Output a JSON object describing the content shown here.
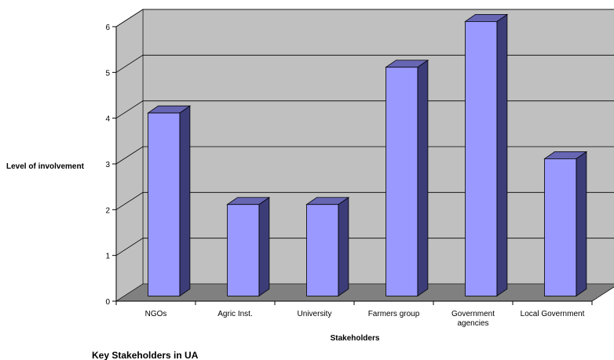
{
  "chart_data": {
    "type": "bar",
    "title": "Key Stakeholders  in UA",
    "xlabel": "Stakeholders",
    "ylabel": "Level of involvement",
    "categories": [
      [
        "NGOs"
      ],
      [
        "Agric Inst."
      ],
      [
        "University"
      ],
      [
        "Farmers group"
      ],
      [
        "Government",
        "agencies"
      ],
      [
        "Local Government"
      ]
    ],
    "values": [
      4,
      2,
      2,
      5,
      6,
      3
    ],
    "ylim": [
      0,
      6
    ],
    "yticks": [
      "0",
      "1",
      "2",
      "3",
      "4",
      "5",
      "6"
    ],
    "grid": true,
    "legend": "none",
    "colors": {
      "bar_front": "#9999ff",
      "bar_side": "#3c3c78",
      "bar_top": "#6666b3",
      "wall": "#c0c0c0",
      "floor": "#808080",
      "grid": "#000000"
    }
  }
}
